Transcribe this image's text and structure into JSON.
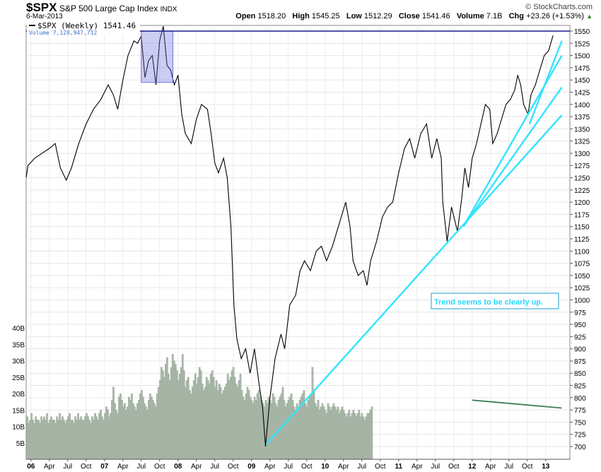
{
  "header": {
    "symbol": "$SPX",
    "name": "S&P 500 Large Cap Index",
    "exchange": "INDX",
    "date": "6-Mar-2013",
    "source": "© StockCharts.com",
    "open_label": "Open",
    "open": "1518.20",
    "high_label": "High",
    "high": "1545.25",
    "low_label": "Low",
    "low": "1512.29",
    "close_label": "Close",
    "close": "1541.46",
    "volume_label": "Volume",
    "volume": "7.1B",
    "chg_label": "Chg",
    "chg": "+23.26 (+1.53%)"
  },
  "colors": {
    "price_line": "#000000",
    "volume_bars": "#a9b8a8",
    "trendlines": "#33e3ff",
    "resistance_line": "#1a1a8c",
    "highlight_box": "#6f6fe0",
    "volume_trend": "#3f7f5a",
    "annotation_text": "#29d8ff"
  },
  "chart_data": {
    "type": "line",
    "title": "$SPX S&P 500 Large Cap Index INDX",
    "legend": [
      "$SPX (Weekly) 1541.46",
      "Volume 7,128,947,712"
    ],
    "annotation": "Trend seems to be clearly up.",
    "y_ticks": [
      700,
      725,
      750,
      775,
      800,
      825,
      850,
      875,
      900,
      925,
      950,
      975,
      1000,
      1025,
      1050,
      1075,
      1100,
      1125,
      1150,
      1175,
      1200,
      1225,
      1250,
      1275,
      1300,
      1325,
      1350,
      1375,
      1400,
      1425,
      1450,
      1475,
      1500,
      1525,
      1550
    ],
    "ylim": [
      680,
      1565
    ],
    "volume_ticks": [
      "5B",
      "10B",
      "15B",
      "20B",
      "25B",
      "30B",
      "35B",
      "40B"
    ],
    "volume_tick_values": [
      5,
      10,
      15,
      20,
      25,
      30,
      35,
      40
    ],
    "x_ticks": [
      {
        "label": "06",
        "t": 0.0,
        "bold": true
      },
      {
        "label": "Apr",
        "t": 0.25
      },
      {
        "label": "Jul",
        "t": 0.5
      },
      {
        "label": "Oct",
        "t": 0.75
      },
      {
        "label": "07",
        "t": 1.0,
        "bold": true
      },
      {
        "label": "Apr",
        "t": 1.25
      },
      {
        "label": "Jul",
        "t": 1.5
      },
      {
        "label": "Oct",
        "t": 1.75
      },
      {
        "label": "08",
        "t": 2.0,
        "bold": true
      },
      {
        "label": "Apr",
        "t": 2.25
      },
      {
        "label": "Jul",
        "t": 2.5
      },
      {
        "label": "Oct",
        "t": 2.75
      },
      {
        "label": "09",
        "t": 3.0,
        "bold": true
      },
      {
        "label": "Apr",
        "t": 3.25
      },
      {
        "label": "Jul",
        "t": 3.5
      },
      {
        "label": "Oct",
        "t": 3.75
      },
      {
        "label": "10",
        "t": 4.0,
        "bold": true
      },
      {
        "label": "Apr",
        "t": 4.25
      },
      {
        "label": "Jul",
        "t": 4.5
      },
      {
        "label": "Oct",
        "t": 4.75
      },
      {
        "label": "11",
        "t": 5.0,
        "bold": true
      },
      {
        "label": "Apr",
        "t": 5.25
      },
      {
        "label": "Jul",
        "t": 5.5
      },
      {
        "label": "Oct",
        "t": 5.75
      },
      {
        "label": "12",
        "t": 6.0,
        "bold": true
      },
      {
        "label": "Apr",
        "t": 6.25
      },
      {
        "label": "Jul",
        "t": 6.5
      },
      {
        "label": "Oct",
        "t": 6.75
      },
      {
        "label": "13",
        "t": 7.0,
        "bold": true
      }
    ],
    "price_series": {
      "name": "$SPX (Weekly)",
      "points": [
        [
          -0.1,
          1250
        ],
        [
          -0.04,
          1275
        ],
        [
          0.05,
          1290
        ],
        [
          0.15,
          1300
        ],
        [
          0.25,
          1310
        ],
        [
          0.33,
          1320
        ],
        [
          0.4,
          1270
        ],
        [
          0.48,
          1245
        ],
        [
          0.55,
          1270
        ],
        [
          0.65,
          1320
        ],
        [
          0.75,
          1360
        ],
        [
          0.85,
          1390
        ],
        [
          0.95,
          1410
        ],
        [
          1.05,
          1440
        ],
        [
          1.12,
          1420
        ],
        [
          1.18,
          1390
        ],
        [
          1.25,
          1450
        ],
        [
          1.32,
          1500
        ],
        [
          1.4,
          1530
        ],
        [
          1.45,
          1525
        ],
        [
          1.5,
          1540
        ],
        [
          1.55,
          1455
        ],
        [
          1.6,
          1490
        ],
        [
          1.65,
          1500
        ],
        [
          1.7,
          1440
        ],
        [
          1.75,
          1530
        ],
        [
          1.8,
          1560
        ],
        [
          1.85,
          1480
        ],
        [
          1.9,
          1470
        ],
        [
          1.95,
          1440
        ],
        [
          2.0,
          1460
        ],
        [
          2.05,
          1380
        ],
        [
          2.1,
          1340
        ],
        [
          2.18,
          1320
        ],
        [
          2.25,
          1370
        ],
        [
          2.32,
          1400
        ],
        [
          2.4,
          1390
        ],
        [
          2.45,
          1340
        ],
        [
          2.5,
          1280
        ],
        [
          2.55,
          1260
        ],
        [
          2.62,
          1290
        ],
        [
          2.67,
          1250
        ],
        [
          2.72,
          1150
        ],
        [
          2.76,
          990
        ],
        [
          2.8,
          920
        ],
        [
          2.86,
          880
        ],
        [
          2.92,
          900
        ],
        [
          2.98,
          850
        ],
        [
          3.04,
          900
        ],
        [
          3.1,
          830
        ],
        [
          3.15,
          780
        ],
        [
          3.19,
          700
        ],
        [
          3.25,
          800
        ],
        [
          3.32,
          880
        ],
        [
          3.4,
          930
        ],
        [
          3.45,
          900
        ],
        [
          3.52,
          990
        ],
        [
          3.6,
          1010
        ],
        [
          3.66,
          1060
        ],
        [
          3.72,
          1080
        ],
        [
          3.8,
          1060
        ],
        [
          3.88,
          1100
        ],
        [
          3.95,
          1110
        ],
        [
          4.02,
          1080
        ],
        [
          4.1,
          1110
        ],
        [
          4.2,
          1160
        ],
        [
          4.28,
          1200
        ],
        [
          4.34,
          1150
        ],
        [
          4.38,
          1080
        ],
        [
          4.45,
          1050
        ],
        [
          4.52,
          1060
        ],
        [
          4.57,
          1030
        ],
        [
          4.62,
          1080
        ],
        [
          4.7,
          1120
        ],
        [
          4.78,
          1170
        ],
        [
          4.85,
          1190
        ],
        [
          4.92,
          1200
        ],
        [
          5.0,
          1260
        ],
        [
          5.08,
          1310
        ],
        [
          5.15,
          1330
        ],
        [
          5.22,
          1290
        ],
        [
          5.3,
          1340
        ],
        [
          5.38,
          1360
        ],
        [
          5.45,
          1290
        ],
        [
          5.52,
          1330
        ],
        [
          5.58,
          1290
        ],
        [
          5.6,
          1200
        ],
        [
          5.66,
          1120
        ],
        [
          5.72,
          1190
        ],
        [
          5.8,
          1140
        ],
        [
          5.86,
          1210
        ],
        [
          5.9,
          1270
        ],
        [
          5.95,
          1230
        ],
        [
          6.0,
          1290
        ],
        [
          6.06,
          1320
        ],
        [
          6.12,
          1360
        ],
        [
          6.18,
          1400
        ],
        [
          6.24,
          1390
        ],
        [
          6.28,
          1320
        ],
        [
          6.34,
          1340
        ],
        [
          6.4,
          1370
        ],
        [
          6.46,
          1400
        ],
        [
          6.52,
          1410
        ],
        [
          6.58,
          1430
        ],
        [
          6.62,
          1460
        ],
        [
          6.66,
          1440
        ],
        [
          6.7,
          1400
        ],
        [
          6.76,
          1380
        ],
        [
          6.8,
          1420
        ],
        [
          6.86,
          1440
        ],
        [
          6.92,
          1470
        ],
        [
          6.98,
          1500
        ],
        [
          7.04,
          1510
        ],
        [
          7.1,
          1541
        ]
      ]
    },
    "volume_series": {
      "name": "Volume",
      "start_t": -0.08,
      "step_t": 0.0192,
      "values": [
        12,
        13,
        11,
        12,
        14,
        12,
        11,
        13,
        12,
        12,
        11,
        13,
        12,
        13,
        12,
        14,
        11,
        12,
        13,
        12,
        12,
        11,
        13,
        12,
        14,
        12,
        13,
        12,
        11,
        12,
        13,
        14,
        12,
        12,
        11,
        13,
        12,
        14,
        12,
        13,
        12,
        12,
        13,
        14,
        13,
        12,
        11,
        13,
        12,
        14,
        13,
        12,
        14,
        15,
        13,
        12,
        14,
        16,
        15,
        13,
        14,
        18,
        22,
        17,
        15,
        14,
        19,
        20,
        18,
        16,
        17,
        15,
        16,
        19,
        18,
        20,
        17,
        16,
        15,
        17,
        18,
        20,
        21,
        19,
        17,
        16,
        15,
        18,
        20,
        19,
        18,
        17,
        16,
        20,
        22,
        24,
        28,
        27,
        25,
        29,
        31,
        26,
        24,
        28,
        32,
        30,
        29,
        27,
        24,
        26,
        28,
        32,
        27,
        22,
        24,
        25,
        21,
        20,
        22,
        24,
        26,
        23,
        25,
        28,
        27,
        23,
        21,
        22,
        25,
        24,
        23,
        26,
        27,
        25,
        22,
        24,
        21,
        23,
        22,
        20,
        21,
        22,
        23,
        26,
        24,
        25,
        27,
        28,
        25,
        23,
        22,
        24,
        26,
        21,
        19,
        18,
        20,
        22,
        21,
        19,
        18,
        17,
        19,
        18,
        20,
        21,
        19,
        18,
        17,
        16,
        18,
        17,
        19,
        18,
        17,
        20,
        19,
        17,
        16,
        18,
        19,
        20,
        22,
        18,
        16,
        17,
        18,
        19,
        20,
        18,
        16,
        15,
        17,
        16,
        18,
        19,
        20,
        21,
        17,
        16,
        18,
        19,
        20,
        28,
        21,
        17,
        16,
        18,
        15,
        16,
        17,
        16,
        15,
        14,
        17,
        16,
        15,
        16,
        17,
        16,
        15,
        16,
        14,
        15,
        16,
        15,
        14,
        13,
        14,
        15,
        13,
        14,
        15,
        14,
        13,
        14,
        15,
        13,
        14,
        13,
        12,
        13,
        14,
        14,
        15,
        16
      ]
    },
    "trendlines": [
      {
        "from": [
          3.2,
          705
        ],
        "to": [
          7.22,
          1378
        ]
      },
      {
        "from": [
          5.88,
          1150
        ],
        "to": [
          7.22,
          1435
        ]
      },
      {
        "from": [
          5.88,
          1150
        ],
        "to": [
          7.22,
          1500
        ]
      },
      {
        "from": [
          6.78,
          1360
        ],
        "to": [
          7.22,
          1530
        ]
      }
    ],
    "resistance_level": 1550,
    "highlight_range": {
      "t": [
        1.5,
        1.93
      ],
      "price": [
        1445,
        1550
      ]
    },
    "volume_trend": {
      "from": [
        6.0,
        18
      ],
      "to": [
        7.22,
        15.6
      ]
    }
  }
}
